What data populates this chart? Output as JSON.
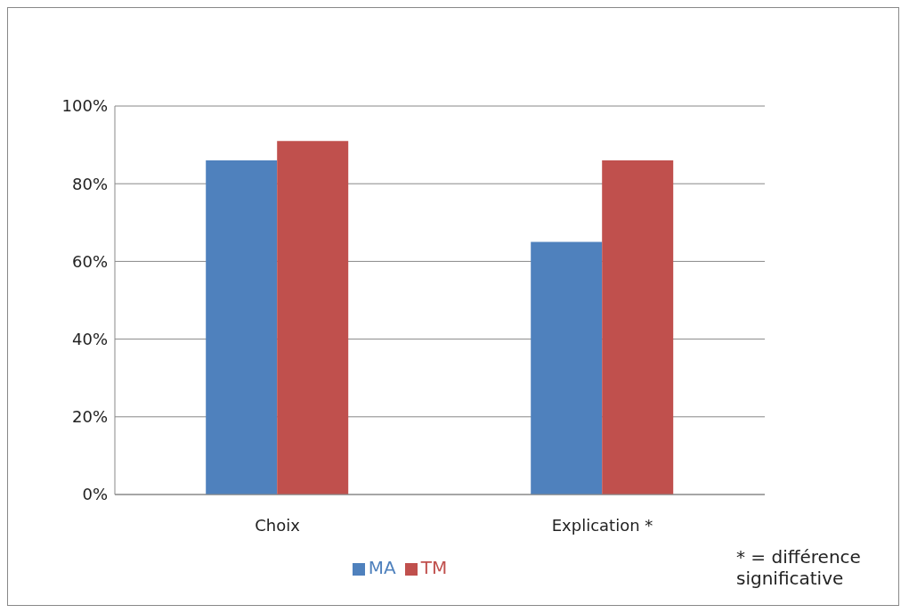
{
  "chart_data": {
    "type": "bar",
    "categories": [
      "Choix",
      "Explication *"
    ],
    "series": [
      {
        "name": "MA",
        "color": "#4f81bd",
        "values": [
          86,
          65
        ]
      },
      {
        "name": "TM",
        "color": "#c0504d",
        "values": [
          91,
          86
        ]
      }
    ],
    "ylim": [
      0,
      100
    ],
    "yticks": [
      {
        "value": 0,
        "label": "0%"
      },
      {
        "value": 20,
        "label": "20%"
      },
      {
        "value": 40,
        "label": "40%"
      },
      {
        "value": 60,
        "label": "60%"
      },
      {
        "value": 80,
        "label": "80%"
      },
      {
        "value": 100,
        "label": "100%"
      }
    ],
    "grid": "y",
    "legend": "bottom",
    "annotations": [
      "* = différence significative"
    ]
  }
}
